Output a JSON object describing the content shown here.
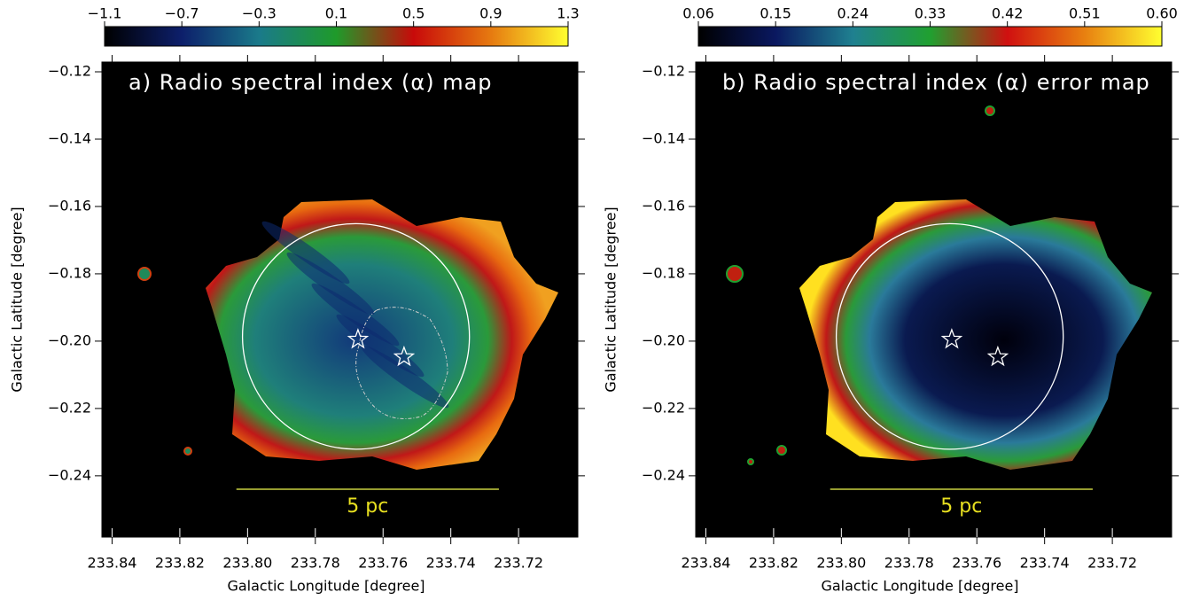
{
  "chart_data": [
    {
      "type": "image",
      "title": "a) Radio spectral index (α) map",
      "x_label": "Galactic Longitude [degree]",
      "y_label": "Galactic Latitude [degree]",
      "xlim": [
        233.843,
        233.7025
      ],
      "ylim": [
        -0.2582,
        -0.1171
      ],
      "xticks": [
        233.84,
        233.82,
        {
          "value": 233.8,
          "label": "233.80"
        },
        233.78,
        233.76,
        233.74,
        233.72
      ],
      "yticks": [
        {
          "value": -0.12,
          "label": "−0.12"
        },
        {
          "value": -0.14,
          "label": "−0.14"
        },
        {
          "value": -0.16,
          "label": "−0.16"
        },
        {
          "value": -0.18,
          "label": "−0.18"
        },
        {
          "value": -0.2,
          "label": "−0.20"
        },
        {
          "value": -0.22,
          "label": "−0.22"
        },
        {
          "value": -0.24,
          "label": "−0.24"
        }
      ],
      "colorbar": {
        "lim": [
          -1.1,
          1.3
        ],
        "ticks": [
          {
            "value": -1.1,
            "label": "−1.1"
          },
          {
            "value": -0.7,
            "label": "−0.7"
          },
          {
            "value": -0.3,
            "label": "−0.3"
          },
          0.1,
          0.5,
          0.9,
          1.3
        ],
        "colormap": [
          "#000000",
          "#0d1f6b",
          "#1a7a8a",
          "#1f9a2a",
          "#c80a0a",
          "#e67a10",
          "#ffff30"
        ]
      },
      "nebula_colors": [
        "#123a7a",
        "#1f7f7a",
        "#2a9a3a",
        "#c01818",
        "#e86a10",
        "#f0a020"
      ],
      "circle": {
        "x": 233.768,
        "y": -0.1986,
        "r": 0.0335
      },
      "stars": {
        "x": [
          233.7674,
          233.7538
        ],
        "y": [
          -0.1995,
          -0.2047
        ]
      },
      "scale_bar": {
        "x": [
          233.8033,
          233.7258
        ],
        "y": -0.244,
        "label": "5 pc"
      }
    },
    {
      "type": "image",
      "title": "b) Radio spectral index (α) error map",
      "x_label": "Galactic Longitude [degree]",
      "y_label": "Galactic Latitude [degree]",
      "xlim": [
        233.843,
        233.7025
      ],
      "ylim": [
        -0.2582,
        -0.1171
      ],
      "xticks": [
        233.84,
        233.82,
        {
          "value": 233.8,
          "label": "233.80"
        },
        233.78,
        233.76,
        233.74,
        233.72
      ],
      "yticks": [
        {
          "value": -0.12,
          "label": "−0.12"
        },
        {
          "value": -0.14,
          "label": "−0.14"
        },
        {
          "value": -0.16,
          "label": "−0.16"
        },
        {
          "value": -0.18,
          "label": "−0.18"
        },
        {
          "value": -0.2,
          "label": "−0.20"
        },
        {
          "value": -0.22,
          "label": "−0.22"
        },
        {
          "value": -0.24,
          "label": "−0.24"
        }
      ],
      "colorbar": {
        "lim": [
          0.06,
          0.6
        ],
        "ticks": [
          0.06,
          0.15,
          0.24,
          0.33,
          0.42,
          0.51,
          {
            "value": 0.6,
            "label": "0.60"
          }
        ],
        "colormap": [
          "#000000",
          "#0a1860",
          "#1f8090",
          "#20a030",
          "#d01010",
          "#e88010",
          "#ffff30"
        ]
      },
      "nebula_colors": [
        "#00000c",
        "#0a1a50",
        "#2a7a9a",
        "#2a9a3a",
        "#c01818",
        "#ffe020"
      ],
      "circle": {
        "x": 233.768,
        "y": -0.1986,
        "r": 0.0335
      },
      "stars": {
        "x": [
          233.7674,
          233.7538
        ],
        "y": [
          -0.1995,
          -0.2047
        ]
      },
      "scale_bar": {
        "x": [
          233.8033,
          233.7258
        ],
        "y": -0.244,
        "label": "5 pc"
      }
    }
  ]
}
